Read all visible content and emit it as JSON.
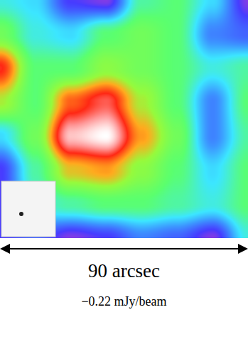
{
  "chart_data": {
    "type": "heatmap",
    "cells": [
      [
        0.03,
        0.0,
        -0.15,
        -0.18,
        0.07,
        0.1,
        0.0,
        -0.18
      ],
      [
        0.14,
        0.03,
        0.0,
        0.1,
        0.14,
        0.1,
        -0.08,
        -0.11
      ],
      [
        0.36,
        0.1,
        0.1,
        0.18,
        0.14,
        0.1,
        0.03,
        0.07
      ],
      [
        0.21,
        0.1,
        0.32,
        0.39,
        0.21,
        0.1,
        -0.08,
        0.1
      ],
      [
        0.0,
        0.14,
        0.46,
        0.5,
        0.28,
        0.14,
        -0.08,
        0.07
      ],
      [
        -0.15,
        0.07,
        0.25,
        0.28,
        0.18,
        0.1,
        0.0,
        0.1
      ],
      [
        -0.15,
        0.03,
        0.07,
        0.1,
        0.1,
        0.07,
        0.03,
        0.1
      ],
      [
        -0.15,
        -0.11,
        -0.18,
        -0.15,
        -0.08,
        -0.11,
        -0.18,
        0.03
      ]
    ],
    "zlim": [
      -0.22,
      0.5
    ],
    "tick_labels": false,
    "scale_label": "90 arcsec",
    "caption": "−0.22 mJy/beam"
  }
}
